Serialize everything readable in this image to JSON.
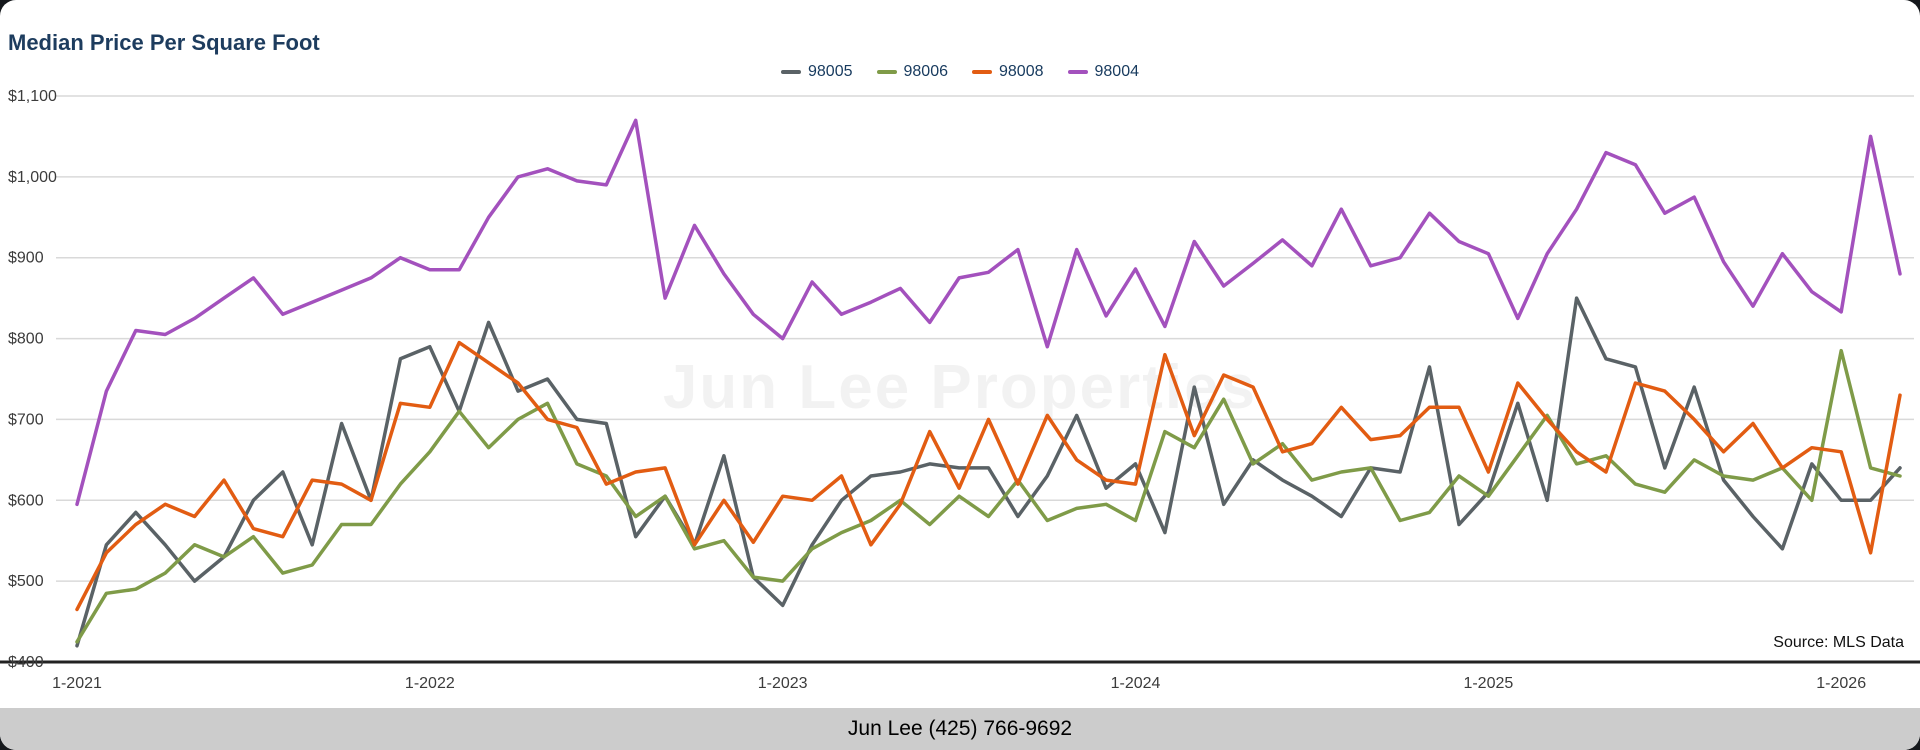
{
  "title": "Median Price Per Square Foot",
  "watermark": "Jun Lee Properties",
  "source_note": "Source: MLS Data",
  "footer": "Jun Lee (425) 766-9692",
  "colors": {
    "title_text": "#1d3c5e",
    "legend_text": "#173a5e",
    "grid_line": "#d9d9d9",
    "axis_line": "#222222",
    "tick_text": "#3c3c3c",
    "footer_bg": "#cccccc",
    "background": "#ffffff"
  },
  "chart_data": {
    "type": "line",
    "title": "Median Price Per Square Foot",
    "x_start": "2021-01",
    "x_interval": "month",
    "n_points": 63,
    "x_tick_labels": [
      "1-2021",
      "1-2022",
      "1-2023",
      "1-2024",
      "1-2025",
      "1-2026"
    ],
    "x_tick_indices": [
      0,
      12,
      24,
      36,
      48,
      60
    ],
    "ylim": [
      400,
      1100
    ],
    "y_ticks": [
      400,
      500,
      600,
      700,
      800,
      900,
      1000,
      1100
    ],
    "y_tick_labels": [
      "$400",
      "$500",
      "$600",
      "$700",
      "$800",
      "$900",
      "$1,000",
      "$1,100"
    ],
    "grid": true,
    "legend_position": "top-center",
    "series": [
      {
        "name": "98005",
        "color": "#5a6266",
        "values": [
          420,
          545,
          585,
          545,
          500,
          530,
          600,
          635,
          545,
          695,
          600,
          775,
          790,
          710,
          820,
          735,
          750,
          700,
          695,
          555,
          605,
          545,
          655,
          505,
          470,
          545,
          600,
          630,
          635,
          645,
          640,
          640,
          580,
          630,
          705,
          615,
          645,
          560,
          740,
          595,
          650,
          625,
          605,
          580,
          640,
          635,
          765,
          570,
          610,
          720,
          600,
          850,
          775,
          765,
          640,
          740,
          625,
          580,
          540,
          645,
          600,
          600,
          640
        ]
      },
      {
        "name": "98006",
        "color": "#7f9b48",
        "values": [
          425,
          485,
          490,
          510,
          545,
          530,
          555,
          510,
          520,
          570,
          570,
          620,
          660,
          710,
          665,
          700,
          720,
          645,
          630,
          580,
          605,
          540,
          550,
          505,
          500,
          540,
          560,
          575,
          600,
          570,
          605,
          580,
          625,
          575,
          590,
          595,
          575,
          685,
          665,
          725,
          645,
          670,
          625,
          635,
          640,
          575,
          585,
          630,
          605,
          655,
          705,
          645,
          655,
          620,
          610,
          650,
          630,
          625,
          640,
          600,
          785,
          640,
          630
        ]
      },
      {
        "name": "98008",
        "color": "#e25c12",
        "values": [
          465,
          535,
          570,
          595,
          580,
          625,
          565,
          555,
          625,
          620,
          600,
          720,
          715,
          795,
          770,
          745,
          700,
          690,
          620,
          635,
          640,
          545,
          600,
          548,
          605,
          600,
          630,
          545,
          595,
          685,
          615,
          700,
          620,
          705,
          650,
          625,
          620,
          780,
          680,
          755,
          740,
          660,
          670,
          715,
          675,
          680,
          715,
          715,
          635,
          745,
          700,
          660,
          635,
          745,
          735,
          700,
          660,
          695,
          640,
          665,
          660,
          535,
          730
        ]
      },
      {
        "name": "98004",
        "color": "#a351bd",
        "values": [
          595,
          735,
          810,
          805,
          825,
          850,
          875,
          830,
          845,
          860,
          875,
          900,
          885,
          885,
          950,
          1000,
          1010,
          995,
          990,
          1070,
          850,
          940,
          880,
          830,
          800,
          870,
          830,
          845,
          862,
          820,
          875,
          882,
          910,
          790,
          910,
          828,
          886,
          815,
          920,
          865,
          893,
          922,
          890,
          960,
          890,
          900,
          955,
          920,
          905,
          825,
          905,
          960,
          1030,
          1015,
          955,
          975,
          895,
          840,
          905,
          858,
          833,
          1050,
          880
        ]
      }
    ]
  }
}
